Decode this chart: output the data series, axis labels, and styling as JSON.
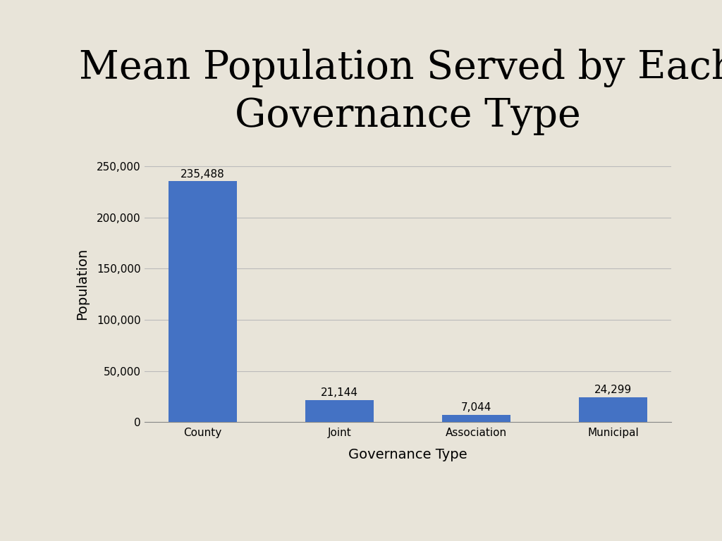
{
  "title": "Mean Population Served by Each\nGovernance Type",
  "categories": [
    "County",
    "Joint",
    "Association",
    "Municipal"
  ],
  "values": [
    235488,
    21144,
    7044,
    24299
  ],
  "bar_labels": [
    "235,488",
    "21,144",
    "7,044",
    "24,299"
  ],
  "bar_color": "#4472C4",
  "xlabel": "Governance Type",
  "ylabel": "Population",
  "ylim": [
    0,
    270000
  ],
  "yticks": [
    0,
    50000,
    100000,
    150000,
    200000,
    250000
  ],
  "ytick_labels": [
    "0",
    "50,000",
    "100,000",
    "150,000",
    "200,000",
    "250,000"
  ],
  "background_color": "#E8E4D9",
  "title_fontsize": 40,
  "axis_label_fontsize": 14,
  "tick_fontsize": 11,
  "bar_label_fontsize": 11
}
